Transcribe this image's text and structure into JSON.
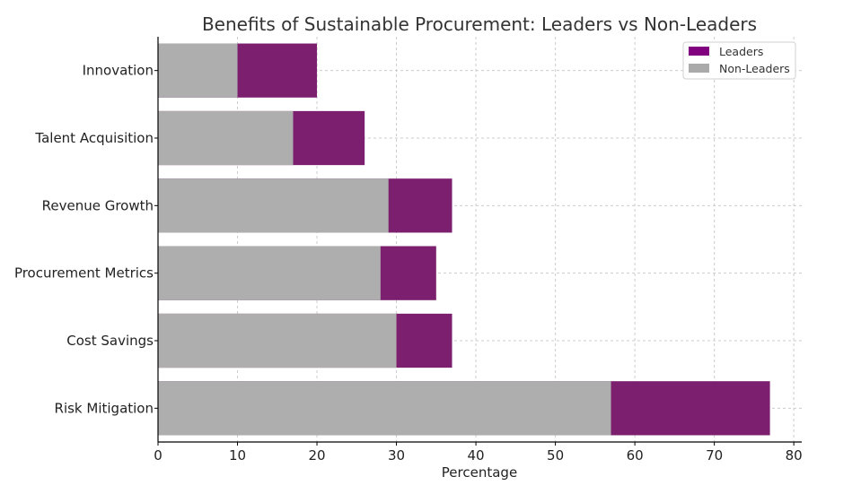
{
  "chart_data": {
    "type": "bar",
    "orientation": "horizontal",
    "stacking": "overlay",
    "title": "Benefits of Sustainable Procurement: Leaders vs Non-Leaders",
    "xlabel": "Percentage",
    "ylabel": "",
    "xlim": [
      0,
      81
    ],
    "xticks": [
      0,
      10,
      20,
      30,
      40,
      50,
      60,
      70,
      80
    ],
    "categories": [
      "Risk Mitigation",
      "Cost Savings",
      "Procurement Metrics",
      "Revenue Growth",
      "Talent Acquisition",
      "Innovation"
    ],
    "series": [
      {
        "name": "Leaders",
        "color": "#7b1f6e",
        "values": [
          77,
          37,
          35,
          37,
          26,
          20
        ]
      },
      {
        "name": "Non-Leaders",
        "color": "#aeaeae",
        "values": [
          57,
          30,
          28,
          29,
          17,
          10
        ]
      }
    ],
    "legend": {
      "position": "top-right",
      "entries": [
        {
          "label": "Leaders",
          "color": "#800080"
        },
        {
          "label": "Non-Leaders",
          "color": "#aaaaaa"
        }
      ]
    },
    "grid": true
  }
}
